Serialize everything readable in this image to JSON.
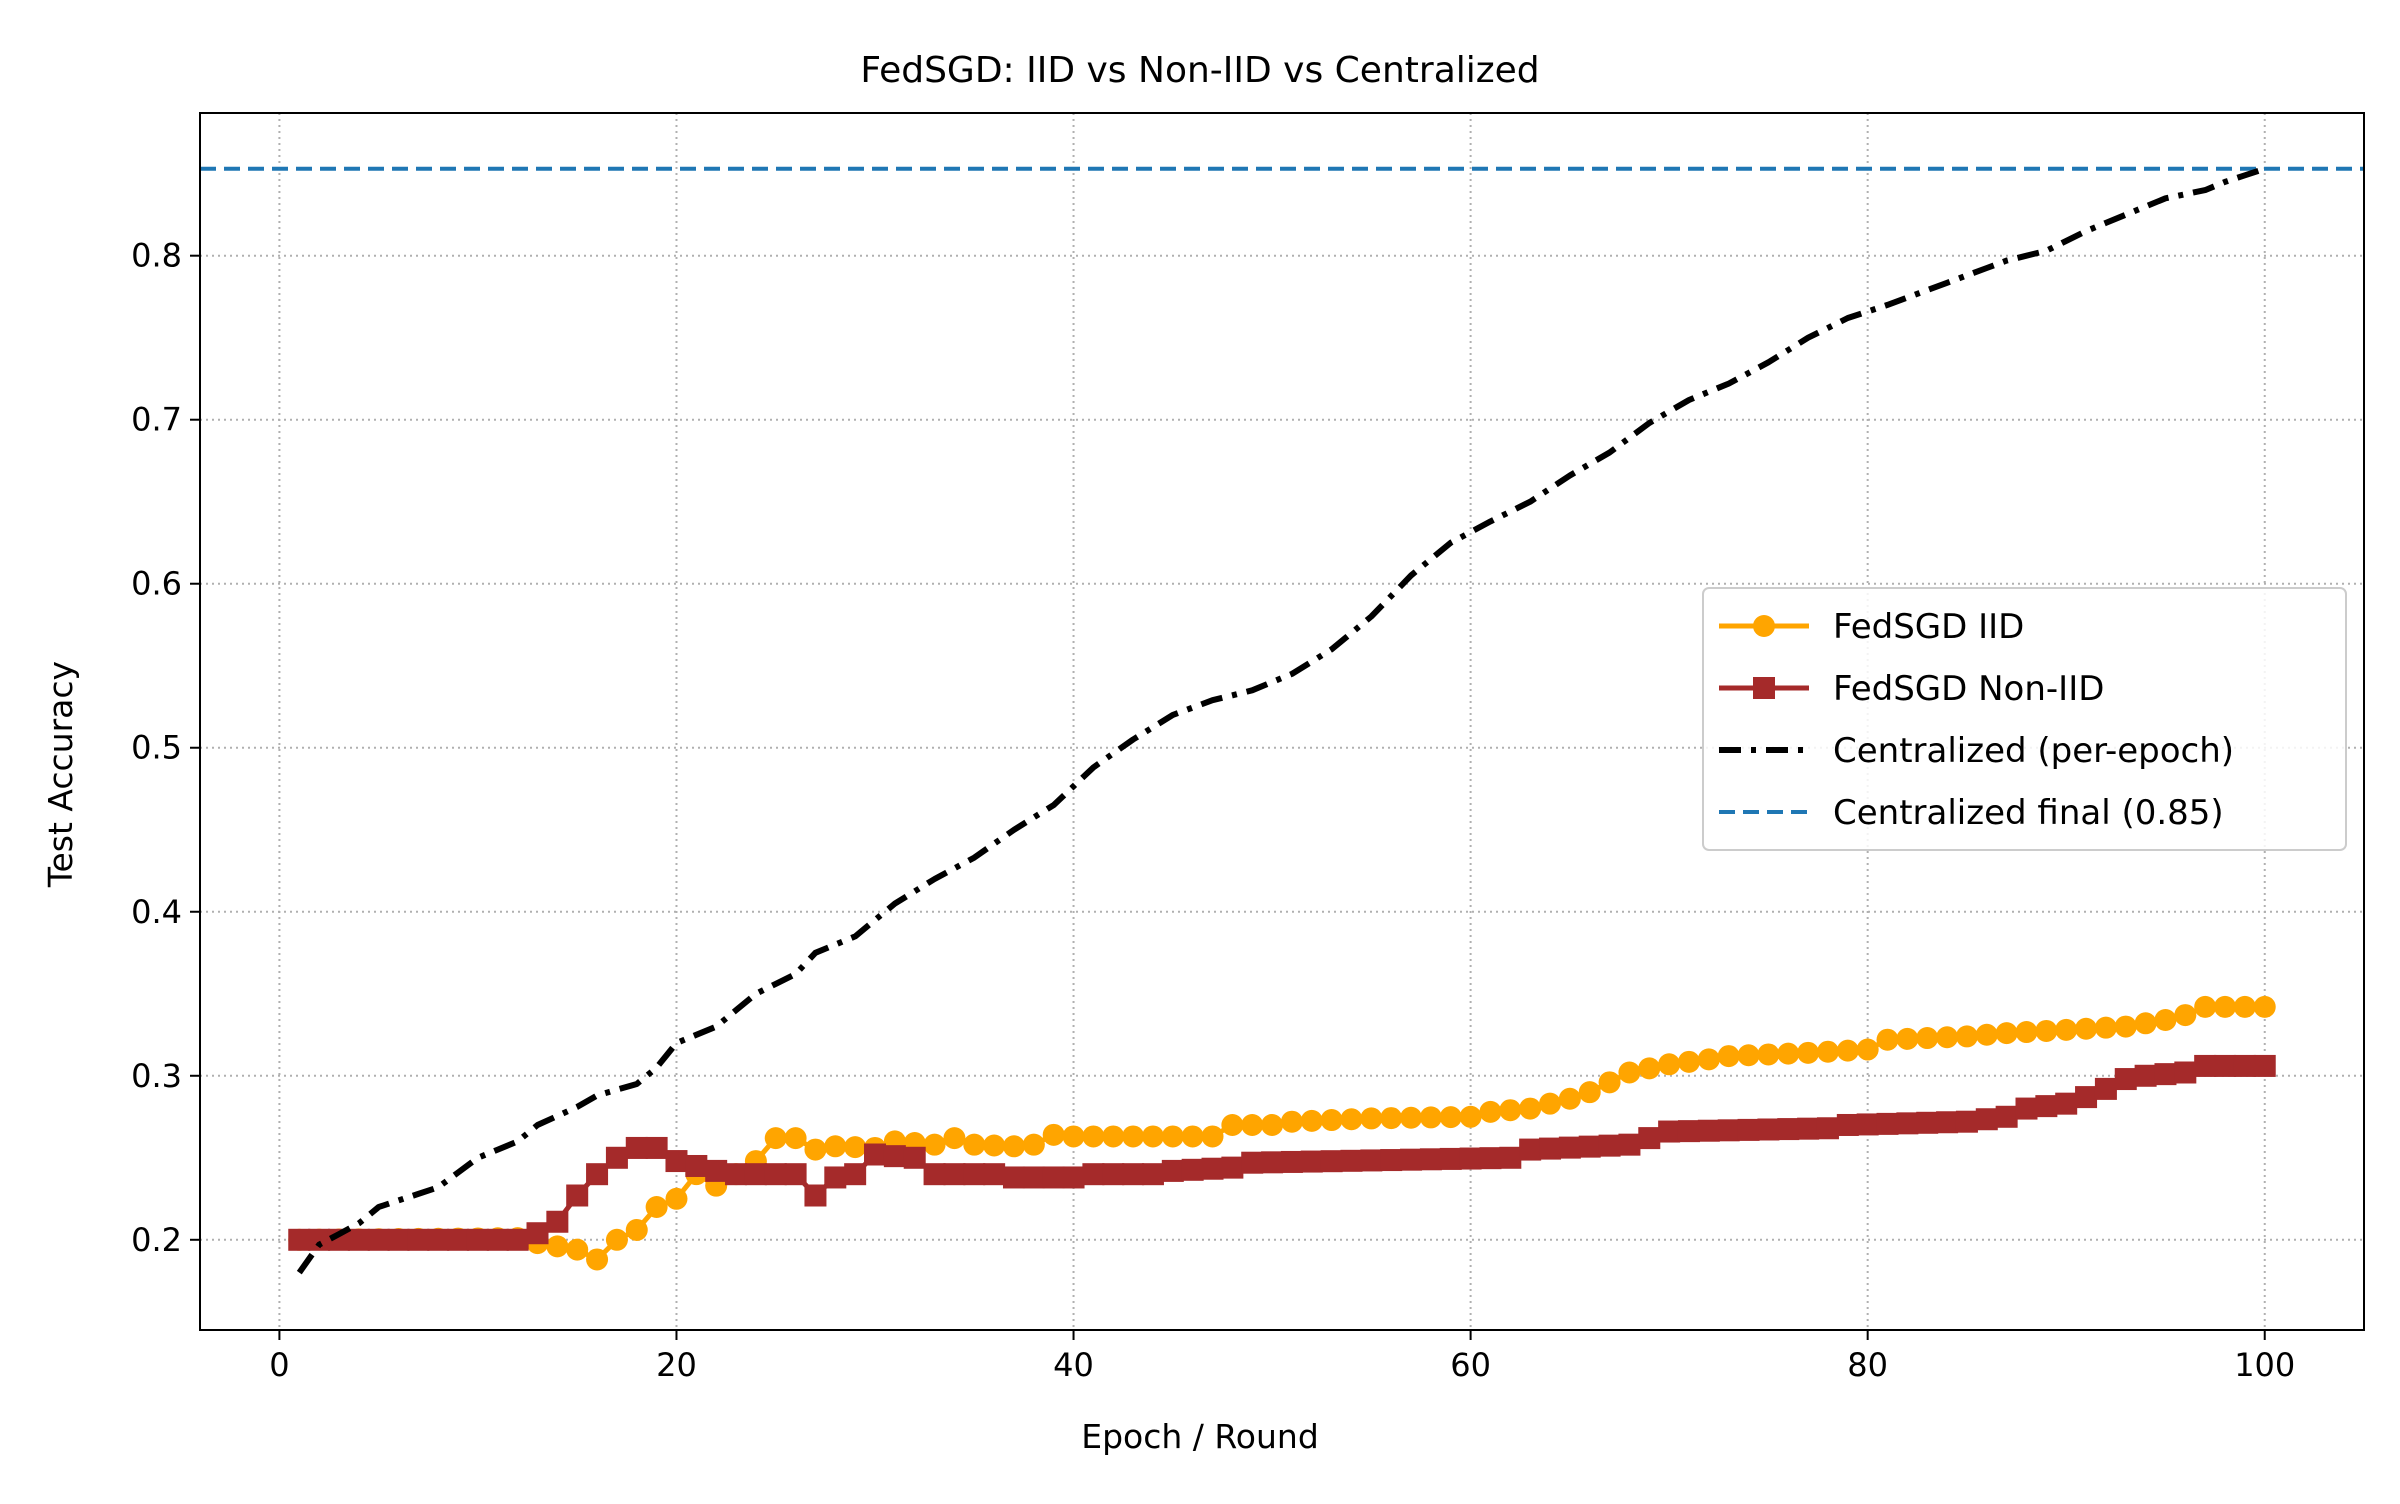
{
  "chart_data": {
    "type": "line",
    "title": "FedSGD: IID vs Non-IID vs Centralized",
    "xlabel": "Epoch / Round",
    "ylabel": "Test Accuracy",
    "xlim": [
      -4,
      105
    ],
    "ylim": [
      0.145,
      0.887
    ],
    "xticks": [
      0,
      20,
      40,
      60,
      80,
      100
    ],
    "xtick_labels": [
      "0",
      "20",
      "40",
      "60",
      "80",
      "100"
    ],
    "yticks": [
      0.2,
      0.3,
      0.4,
      0.5,
      0.6,
      0.7,
      0.8
    ],
    "ytick_labels": [
      "0.2",
      "0.3",
      "0.4",
      "0.5",
      "0.6",
      "0.7",
      "0.8"
    ],
    "grid": true,
    "legend_position": "center-right",
    "series": [
      {
        "name": "FedSGD IID",
        "color": "#ffa500",
        "marker": "circle",
        "linestyle": "solid",
        "knots": [
          [
            1,
            0.2
          ],
          [
            12,
            0.201
          ],
          [
            13,
            0.198
          ],
          [
            14,
            0.196
          ],
          [
            15,
            0.194
          ],
          [
            16,
            0.188
          ],
          [
            17,
            0.2
          ],
          [
            18,
            0.206
          ],
          [
            19,
            0.22
          ],
          [
            20,
            0.225
          ],
          [
            21,
            0.24
          ],
          [
            22,
            0.233
          ],
          [
            23,
            0.24
          ],
          [
            24,
            0.248
          ],
          [
            25,
            0.262
          ],
          [
            26,
            0.262
          ],
          [
            27,
            0.255
          ],
          [
            28,
            0.257
          ],
          [
            30,
            0.256
          ],
          [
            31,
            0.26
          ],
          [
            33,
            0.258
          ],
          [
            34,
            0.262
          ],
          [
            35,
            0.258
          ],
          [
            37,
            0.257
          ],
          [
            38,
            0.258
          ],
          [
            39,
            0.264
          ],
          [
            40,
            0.263
          ],
          [
            47,
            0.263
          ],
          [
            48,
            0.27
          ],
          [
            50,
            0.27
          ],
          [
            51,
            0.272
          ],
          [
            55,
            0.274
          ],
          [
            60,
            0.275
          ],
          [
            61,
            0.278
          ],
          [
            63,
            0.28
          ],
          [
            65,
            0.286
          ],
          [
            66,
            0.29
          ],
          [
            67,
            0.296
          ],
          [
            68,
            0.302
          ],
          [
            70,
            0.307
          ],
          [
            72,
            0.31
          ],
          [
            73,
            0.312
          ],
          [
            77,
            0.314
          ],
          [
            80,
            0.316
          ],
          [
            81,
            0.322
          ],
          [
            85,
            0.324
          ],
          [
            87,
            0.326
          ],
          [
            90,
            0.328
          ],
          [
            93,
            0.33
          ],
          [
            95,
            0.334
          ],
          [
            96,
            0.337
          ],
          [
            97,
            0.342
          ],
          [
            100,
            0.342
          ]
        ]
      },
      {
        "name": "FedSGD Non-IID",
        "color": "#a52a2a",
        "marker": "square",
        "linestyle": "solid",
        "knots": [
          [
            1,
            0.2
          ],
          [
            12,
            0.2
          ],
          [
            13,
            0.204
          ],
          [
            14,
            0.211
          ],
          [
            15,
            0.227
          ],
          [
            16,
            0.24
          ],
          [
            17,
            0.25
          ],
          [
            18,
            0.256
          ],
          [
            19,
            0.256
          ],
          [
            20,
            0.248
          ],
          [
            22,
            0.242
          ],
          [
            23,
            0.24
          ],
          [
            26,
            0.24
          ],
          [
            27,
            0.227
          ],
          [
            28,
            0.238
          ],
          [
            29,
            0.24
          ],
          [
            30,
            0.252
          ],
          [
            32,
            0.25
          ],
          [
            33,
            0.24
          ],
          [
            36,
            0.24
          ],
          [
            37,
            0.238
          ],
          [
            40,
            0.238
          ],
          [
            41,
            0.24
          ],
          [
            44,
            0.24
          ],
          [
            45,
            0.242
          ],
          [
            48,
            0.244
          ],
          [
            49,
            0.247
          ],
          [
            62,
            0.25
          ],
          [
            63,
            0.255
          ],
          [
            68,
            0.258
          ],
          [
            69,
            0.262
          ],
          [
            70,
            0.266
          ],
          [
            78,
            0.268
          ],
          [
            79,
            0.27
          ],
          [
            85,
            0.272
          ],
          [
            87,
            0.275
          ],
          [
            88,
            0.28
          ],
          [
            90,
            0.283
          ],
          [
            91,
            0.287
          ],
          [
            92,
            0.292
          ],
          [
            93,
            0.298
          ],
          [
            94,
            0.3
          ],
          [
            96,
            0.302
          ],
          [
            97,
            0.306
          ],
          [
            100,
            0.306
          ]
        ]
      },
      {
        "name": "Centralized (per-epoch)",
        "color": "#000000",
        "marker": "none",
        "linestyle": "dashdot",
        "knots": [
          [
            1,
            0.18
          ],
          [
            2,
            0.197
          ],
          [
            4,
            0.21
          ],
          [
            5,
            0.22
          ],
          [
            8,
            0.232
          ],
          [
            10,
            0.25
          ],
          [
            12,
            0.26
          ],
          [
            13,
            0.27
          ],
          [
            15,
            0.281
          ],
          [
            16,
            0.288
          ],
          [
            18,
            0.295
          ],
          [
            19,
            0.305
          ],
          [
            20,
            0.32
          ],
          [
            22,
            0.33
          ],
          [
            24,
            0.35
          ],
          [
            26,
            0.362
          ],
          [
            27,
            0.375
          ],
          [
            29,
            0.385
          ],
          [
            31,
            0.405
          ],
          [
            33,
            0.42
          ],
          [
            35,
            0.433
          ],
          [
            37,
            0.45
          ],
          [
            39,
            0.465
          ],
          [
            41,
            0.488
          ],
          [
            43,
            0.505
          ],
          [
            45,
            0.52
          ],
          [
            47,
            0.529
          ],
          [
            49,
            0.535
          ],
          [
            51,
            0.545
          ],
          [
            53,
            0.56
          ],
          [
            55,
            0.58
          ],
          [
            57,
            0.605
          ],
          [
            59,
            0.625
          ],
          [
            61,
            0.638
          ],
          [
            63,
            0.65
          ],
          [
            65,
            0.666
          ],
          [
            67,
            0.68
          ],
          [
            69,
            0.698
          ],
          [
            71,
            0.712
          ],
          [
            73,
            0.722
          ],
          [
            75,
            0.735
          ],
          [
            77,
            0.75
          ],
          [
            79,
            0.762
          ],
          [
            81,
            0.77
          ],
          [
            83,
            0.779
          ],
          [
            85,
            0.788
          ],
          [
            87,
            0.797
          ],
          [
            89,
            0.803
          ],
          [
            91,
            0.815
          ],
          [
            93,
            0.825
          ],
          [
            95,
            0.835
          ],
          [
            97,
            0.84
          ],
          [
            98,
            0.845
          ],
          [
            100,
            0.853
          ]
        ]
      },
      {
        "name": "Centralized final (0.85)",
        "color": "#1f77b4",
        "marker": "none",
        "linestyle": "dashed",
        "type": "hline",
        "y": 0.853
      }
    ]
  }
}
